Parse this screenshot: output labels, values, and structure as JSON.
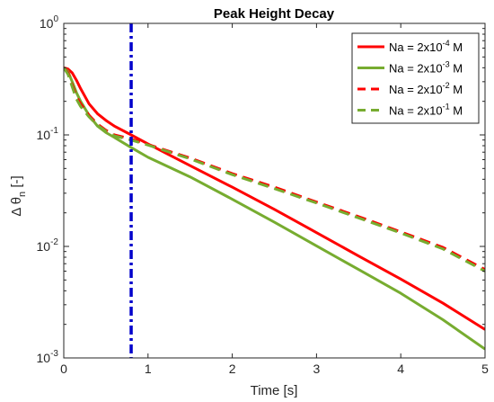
{
  "chart_data": {
    "type": "line",
    "title": "Peak Height Decay",
    "xlabel": "Time [s]",
    "ylabel": {
      "prefix": "Δ θ",
      "subscript": "n",
      "suffix": " [-]"
    },
    "xlim": [
      0,
      5
    ],
    "ylim": [
      0.001,
      1
    ],
    "yscale": "log",
    "grid": false,
    "legend_position": "top-right",
    "x_ticks": [
      "0",
      "1",
      "2",
      "3",
      "4",
      "5"
    ],
    "x_tick_values": [
      0,
      1,
      2,
      3,
      4,
      5
    ],
    "y_ticks": [
      {
        "value": 0.001,
        "base": "10",
        "exp": "-3"
      },
      {
        "value": 0.01,
        "base": "10",
        "exp": "-2"
      },
      {
        "value": 0.1,
        "base": "10",
        "exp": "-1"
      },
      {
        "value": 1,
        "base": "10",
        "exp": "0"
      }
    ],
    "vertical_line": {
      "x": 0.8,
      "color": "#0000cc",
      "style": "dash-dot"
    },
    "series": [
      {
        "name": "Na = 2x10-4 M",
        "legend": {
          "pre": "Na = 2x10",
          "exp": "-4",
          "post": " M"
        },
        "color": "#ff0000",
        "style": "solid",
        "x": [
          0,
          0.05,
          0.1,
          0.15,
          0.2,
          0.3,
          0.4,
          0.5,
          0.6,
          0.8,
          1.0,
          1.5,
          2.0,
          2.5,
          3.0,
          3.5,
          4.0,
          4.5,
          5.0
        ],
        "y": [
          0.4,
          0.39,
          0.36,
          0.31,
          0.26,
          0.19,
          0.155,
          0.135,
          0.12,
          0.1,
          0.083,
          0.053,
          0.034,
          0.0215,
          0.0133,
          0.0082,
          0.0051,
          0.0031,
          0.0018
        ]
      },
      {
        "name": "Na = 2x10-3 M",
        "legend": {
          "pre": "Na = 2x10",
          "exp": "-3",
          "post": " M"
        },
        "color": "#77ac30",
        "style": "solid",
        "x": [
          0,
          0.05,
          0.1,
          0.15,
          0.2,
          0.3,
          0.4,
          0.5,
          0.6,
          0.8,
          1.0,
          1.5,
          2.0,
          2.5,
          3.0,
          3.5,
          4.0,
          4.5,
          5.0
        ],
        "y": [
          0.4,
          0.37,
          0.3,
          0.24,
          0.2,
          0.15,
          0.12,
          0.105,
          0.095,
          0.077,
          0.063,
          0.042,
          0.0265,
          0.0165,
          0.0101,
          0.0062,
          0.0038,
          0.0022,
          0.0012
        ]
      },
      {
        "name": "Na = 2x10-2 M",
        "legend": {
          "pre": "Na = 2x10",
          "exp": "-2",
          "post": " M"
        },
        "color": "#ff0000",
        "style": "dashed",
        "x": [
          0,
          0.05,
          0.1,
          0.15,
          0.2,
          0.3,
          0.4,
          0.5,
          0.6,
          0.8,
          1.0,
          1.5,
          2.0,
          2.5,
          3.0,
          3.5,
          4.0,
          4.5,
          5.0
        ],
        "y": [
          0.4,
          0.36,
          0.28,
          0.22,
          0.19,
          0.15,
          0.125,
          0.11,
          0.1,
          0.092,
          0.082,
          0.062,
          0.045,
          0.034,
          0.025,
          0.0185,
          0.0135,
          0.0098,
          0.0062
        ]
      },
      {
        "name": "Na = 2x10-1 M",
        "legend": {
          "pre": "Na = 2x10",
          "exp": "-1",
          "post": " M"
        },
        "color": "#77ac30",
        "style": "dashed",
        "x": [
          0,
          0.05,
          0.1,
          0.15,
          0.2,
          0.3,
          0.4,
          0.5,
          0.6,
          0.8,
          1.0,
          1.5,
          2.0,
          2.5,
          3.0,
          3.5,
          4.0,
          4.5,
          5.0
        ],
        "y": [
          0.4,
          0.35,
          0.27,
          0.21,
          0.18,
          0.145,
          0.122,
          0.108,
          0.098,
          0.09,
          0.081,
          0.061,
          0.044,
          0.033,
          0.0245,
          0.018,
          0.0132,
          0.0095,
          0.006
        ]
      }
    ]
  }
}
